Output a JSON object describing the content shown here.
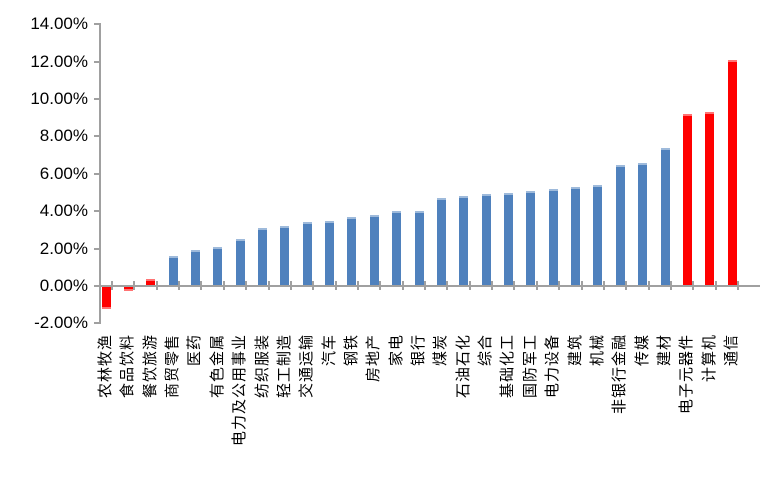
{
  "chart_data": {
    "type": "bar",
    "title": "",
    "xlabel": "",
    "ylabel": "",
    "unit": "%",
    "grid": "off",
    "legend": "none",
    "ylim": [
      -2,
      14
    ],
    "y_ticks": [
      {
        "value": 14,
        "label": "14.00%"
      },
      {
        "value": 12,
        "label": "12.00%"
      },
      {
        "value": 10,
        "label": "10.00%"
      },
      {
        "value": 8,
        "label": "8.00%"
      },
      {
        "value": 6,
        "label": "6.00%"
      },
      {
        "value": 4,
        "label": "4.00%"
      },
      {
        "value": 2,
        "label": "2.00%"
      },
      {
        "value": 0,
        "label": "0.00%"
      },
      {
        "value": -2,
        "label": "-2.00%"
      }
    ],
    "categories": [
      "农林牧渔",
      "食品饮料",
      "餐饮旅游",
      "商贸零售",
      "医药",
      "有色金属",
      "电力及公用事业",
      "纺织服装",
      "轻工制造",
      "交通运输",
      "汽车",
      "钢铁",
      "房地产",
      "家电",
      "银行",
      "煤炭",
      "石油石化",
      "综合",
      "基础化工",
      "国防军工",
      "电力设备",
      "建筑",
      "机械",
      "非银行金融",
      "传媒",
      "建材",
      "电子元器件",
      "计算机",
      "通信"
    ],
    "values": [
      -1.2,
      -0.2,
      0.4,
      1.6,
      1.9,
      2.1,
      2.5,
      3.1,
      3.2,
      3.4,
      3.5,
      3.7,
      3.8,
      4.0,
      4.0,
      4.7,
      4.8,
      4.9,
      5.0,
      5.1,
      5.2,
      5.3,
      5.4,
      6.5,
      6.6,
      7.4,
      9.2,
      9.3,
      12.1
    ],
    "point_colors": [
      "#FF0000",
      "#FF0000",
      "#FF0000",
      "#4F81BD",
      "#4F81BD",
      "#4F81BD",
      "#4F81BD",
      "#4F81BD",
      "#4F81BD",
      "#4F81BD",
      "#4F81BD",
      "#4F81BD",
      "#4F81BD",
      "#4F81BD",
      "#4F81BD",
      "#4F81BD",
      "#4F81BD",
      "#4F81BD",
      "#4F81BD",
      "#4F81BD",
      "#4F81BD",
      "#4F81BD",
      "#4F81BD",
      "#4F81BD",
      "#4F81BD",
      "#4F81BD",
      "#FF0000",
      "#FF0000",
      "#FF0000"
    ],
    "bar_color_default": "#4F81BD",
    "bar_color_highlight": "#FF0000",
    "axis_color": "#A0A0A0"
  }
}
